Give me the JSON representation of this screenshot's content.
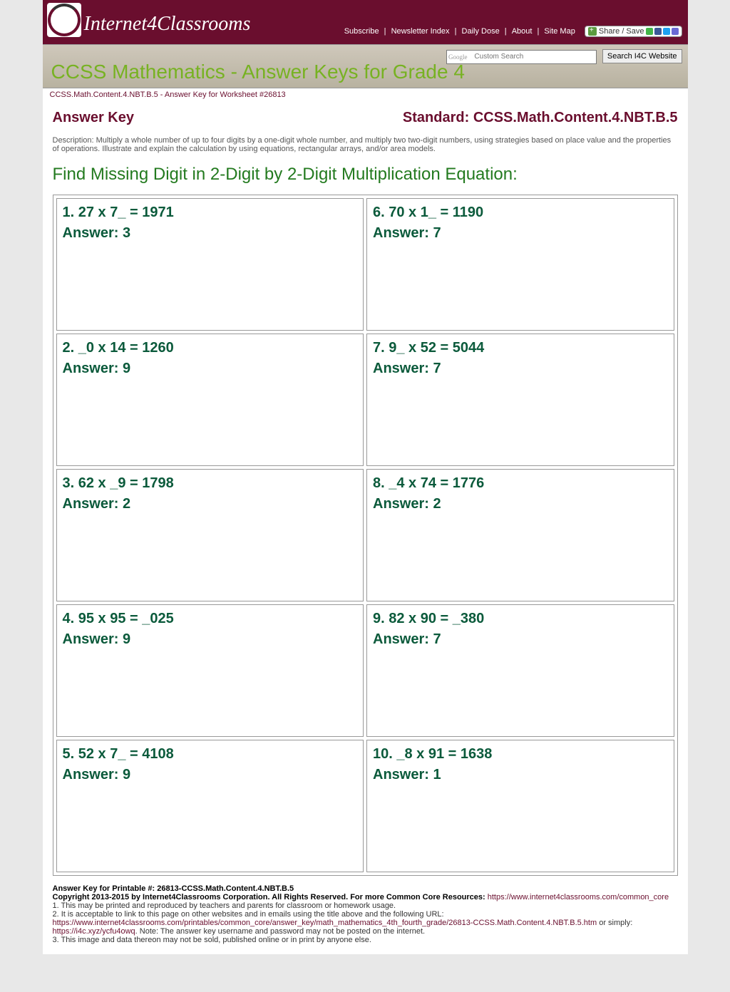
{
  "logo_text": "Internet4Classrooms",
  "nav": {
    "subscribe": "Subscribe",
    "newsletter": "Newsletter Index",
    "daily": "Daily Dose",
    "about": "About",
    "sitemap": "Site Map",
    "share": "Share / Save"
  },
  "search": {
    "placeholder": "Custom Search",
    "button": "Search I4C Website"
  },
  "banner_title": "CCSS Mathematics - Answer Keys for Grade 4",
  "crumb": "CCSS.Math.Content.4.NBT.B.5 - Answer Key for Worksheet #26813",
  "answer_key_label": "Answer Key",
  "standard_label": "Standard: CCSS.Math.Content.4.NBT.B.5",
  "description": "Description: Multiply a whole number of up to four digits by a one-digit whole number, and multiply two two-digit numbers, using strategies based on place value and the properties of operations. Illustrate and explain the calculation by using equations, rectangular arrays, and/or area models.",
  "section_title": "Find Missing Digit in 2-Digit by 2-Digit Multiplication Equation:",
  "questions": [
    {
      "q": "1. 27 x 7_ = 1971",
      "a": "Answer: 3"
    },
    {
      "q": "6. 70 x 1_ = 1190",
      "a": "Answer: 7"
    },
    {
      "q": "2. _0 x 14 = 1260",
      "a": "Answer: 9"
    },
    {
      "q": "7. 9_ x 52 = 5044",
      "a": "Answer: 7"
    },
    {
      "q": "3. 62 x _9 = 1798",
      "a": "Answer: 2"
    },
    {
      "q": "8. _4 x 74 = 1776",
      "a": "Answer: 2"
    },
    {
      "q": "4. 95 x 95 = _025",
      "a": "Answer: 9"
    },
    {
      "q": "9. 82 x 90 = _380",
      "a": "Answer: 7"
    },
    {
      "q": "5. 52 x 7_ = 4108",
      "a": "Answer: 9"
    },
    {
      "q": "10. _8 x 91 = 1638",
      "a": "Answer: 1"
    }
  ],
  "footer": {
    "line1": "Answer Key for Printable #: 26813-CCSS.Math.Content.4.NBT.B.5",
    "line2a": "Copyright 2013-2015 by Internet4Classrooms Corporation. All Rights Reserved. For more Common Core Resources: ",
    "line2b": "https://www.internet4classrooms.com/common_core",
    "line3": "1. This may be printed and reproduced by teachers and parents for classroom or homework usage.",
    "line4": "2. It is acceptable to link to this page on other websites and in emails using the title above and the following URL:",
    "line5a": "https://www.internet4classrooms.com/printables/common_core/answer_key/math_mathematics_4th_fourth_grade/26813-CCSS.Math.Content.4.NBT.B.5.htm",
    "line5b": " or simply: ",
    "line5c": "https://i4c.xyz/ycfu4owq",
    "line5d": ". Note: The answer key username and password may not be posted on the internet.",
    "line6": "3. This image and data thereon may not be sold, published online or in print by anyone else."
  }
}
